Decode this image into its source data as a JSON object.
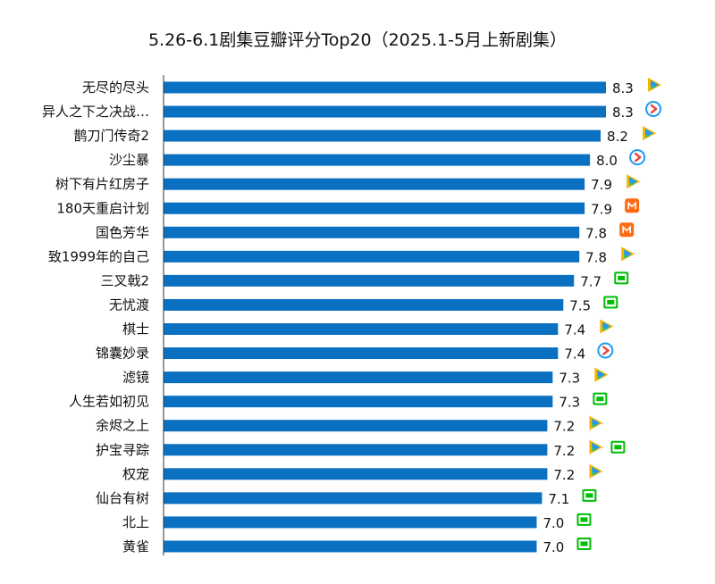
{
  "chart_data": {
    "type": "bar",
    "orientation": "horizontal",
    "title": "5.26-6.1剧集豆瓣评分Top20（2025.1-5月上新剧集）",
    "xlabel": "",
    "ylabel": "",
    "xlim": [
      0,
      8.3
    ],
    "grid": false,
    "bar_color": "#0a70c2",
    "categories": [
      "无尽的尽头",
      "异人之下之决战…",
      "鹊刀门传奇2",
      "沙尘暴",
      "树下有片红房子",
      "180天重启计划",
      "国色芳华",
      "致1999年的自己",
      "三叉戟2",
      "无忧渡",
      "棋士",
      "锦囊妙录",
      "滤镜",
      "人生若如初见",
      "余烬之上",
      "护宝寻踪",
      "权宠",
      "仙台有树",
      "北上",
      "黄雀"
    ],
    "values": [
      8.3,
      8.3,
      8.2,
      8.0,
      7.9,
      7.9,
      7.8,
      7.8,
      7.7,
      7.5,
      7.4,
      7.4,
      7.3,
      7.3,
      7.2,
      7.2,
      7.2,
      7.1,
      7.0,
      7.0
    ],
    "value_labels": [
      "8.3",
      "8.3",
      "8.2",
      "8.0",
      "7.9",
      "7.9",
      "7.8",
      "7.8",
      "7.7",
      "7.5",
      "7.4",
      "7.4",
      "7.3",
      "7.3",
      "7.2",
      "7.2",
      "7.2",
      "7.1",
      "7.0",
      "7.0"
    ],
    "platforms": [
      [
        "tencent-video"
      ],
      [
        "youku"
      ],
      [
        "tencent-video"
      ],
      [
        "youku"
      ],
      [
        "tencent-video"
      ],
      [
        "mango-tv"
      ],
      [
        "mango-tv"
      ],
      [
        "tencent-video"
      ],
      [
        "iqiyi"
      ],
      [
        "iqiyi"
      ],
      [
        "tencent-video"
      ],
      [
        "youku"
      ],
      [
        "tencent-video"
      ],
      [
        "iqiyi"
      ],
      [
        "tencent-video"
      ],
      [
        "tencent-video",
        "iqiyi"
      ],
      [
        "tencent-video"
      ],
      [
        "iqiyi"
      ],
      [
        "iqiyi"
      ],
      [
        "iqiyi"
      ]
    ]
  }
}
